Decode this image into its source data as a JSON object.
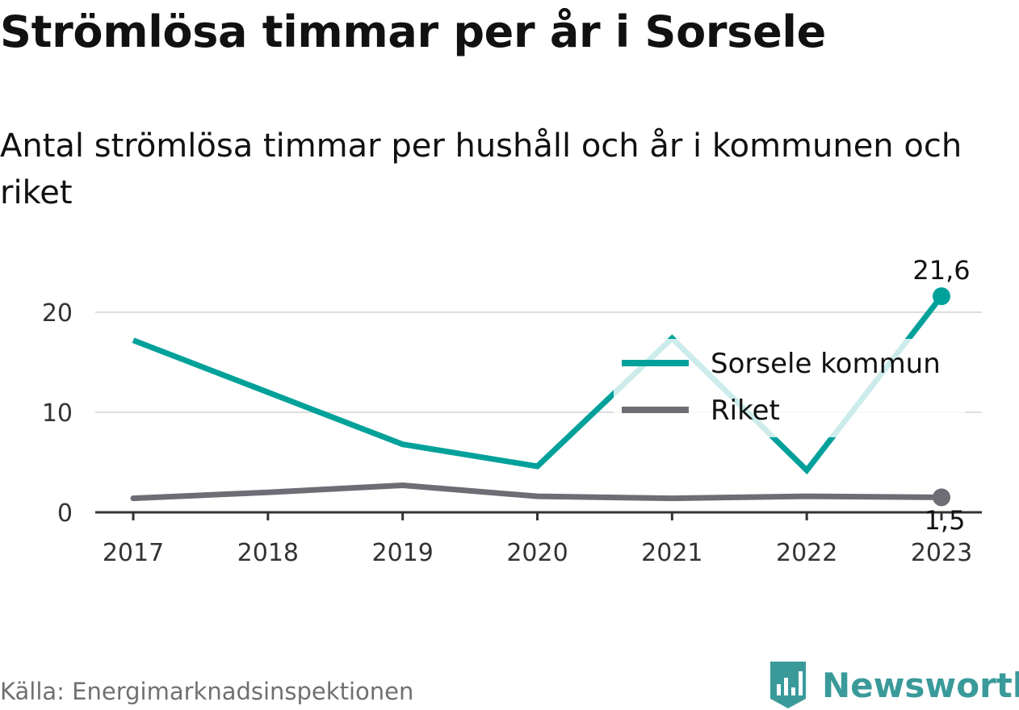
{
  "title": "Strömlösa timmar per år i Sorsele",
  "subtitle": "Antal strömlösa timmar per hushåll och år i kommunen och riket",
  "source": "Källa: Energimarknadsinspektionen",
  "brand": {
    "name": "Newsworthy",
    "logo_icon": "newsworthy-logo-icon"
  },
  "colors": {
    "sorsele": "#00a19a",
    "riket": "#6e6d76",
    "grid": "#dddddd",
    "axis": "#333333"
  },
  "chart_data": {
    "type": "line",
    "x": [
      "2017",
      "2018",
      "2019",
      "2020",
      "2021",
      "2022",
      "2023"
    ],
    "series": [
      {
        "name": "Sorsele kommun",
        "values": [
          17.2,
          12.0,
          6.8,
          4.6,
          17.4,
          4.2,
          21.6
        ]
      },
      {
        "name": "Riket",
        "values": [
          1.4,
          2.0,
          2.7,
          1.6,
          1.4,
          1.6,
          1.5
        ]
      }
    ],
    "yticks": [
      "0",
      "10",
      "20"
    ],
    "ylim": [
      0,
      22.5
    ],
    "end_labels": [
      "21,6",
      "1,5"
    ],
    "legend_position": "right",
    "grid": true
  }
}
